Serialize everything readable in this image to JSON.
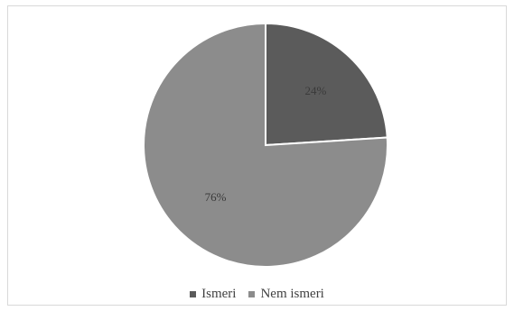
{
  "chart_data": {
    "type": "pie",
    "categories": [
      "Ismeri",
      "Nem ismeri"
    ],
    "values": [
      24,
      76
    ],
    "data_labels": [
      "24%",
      "76%"
    ],
    "colors": [
      "#5b5b5b",
      "#8c8c8c"
    ],
    "start_angle_deg": 0,
    "direction": "clockwise",
    "legend_position": "bottom",
    "title": ""
  },
  "legend": {
    "items": [
      {
        "label": "Ismeri",
        "color": "#5b5b5b"
      },
      {
        "label": "Nem ismeri",
        "color": "#8c8c8c"
      }
    ]
  }
}
